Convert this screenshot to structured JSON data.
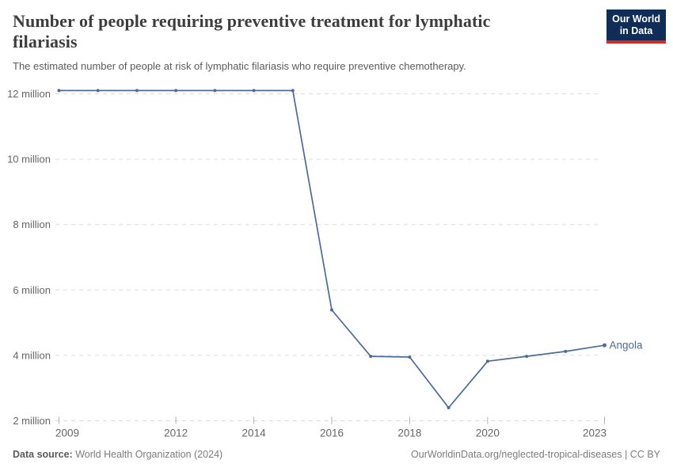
{
  "header": {
    "title_lines": [
      "Number of people requiring preventive treatment for lymphatic",
      "filariasis"
    ],
    "subtitle": "The estimated number of people at risk of lymphatic filariasis who require preventive chemotherapy."
  },
  "logo": {
    "line1": "Our World",
    "line2": "in Data",
    "background_color": "#0f2d56",
    "accent_color": "#cf2d27"
  },
  "footer": {
    "data_source_label": "Data source:",
    "data_source_value": " World Health Organization (2024)",
    "right_text": "OurWorldinData.org/neglected-tropical-diseases | CC BY"
  },
  "chart_data": {
    "type": "line",
    "title": "Number of people requiring preventive treatment for lymphatic filariasis",
    "subtitle": "The estimated number of people at risk of lymphatic filariasis who require preventive chemotherapy.",
    "x": [
      2009,
      2010,
      2011,
      2012,
      2013,
      2014,
      2015,
      2016,
      2017,
      2018,
      2019,
      2020,
      2021,
      2022,
      2023
    ],
    "series": [
      {
        "name": "Angola",
        "color": "#4C6A9C",
        "values": [
          12.1,
          12.1,
          12.1,
          12.1,
          12.1,
          12.1,
          12.1,
          5.39,
          3.97,
          3.95,
          2.4,
          3.82,
          3.97,
          4.12,
          4.31
        ]
      }
    ],
    "values_unit": "millions of people",
    "xlabel": "",
    "ylabel": "",
    "ylim": [
      2,
      12
    ],
    "yticks": [
      {
        "value": 2,
        "label": "2 million"
      },
      {
        "value": 4,
        "label": "4 million"
      },
      {
        "value": 6,
        "label": "6 million"
      },
      {
        "value": 8,
        "label": "8 million"
      },
      {
        "value": 10,
        "label": "10 million"
      },
      {
        "value": 12,
        "label": "12 million"
      }
    ],
    "xticks": [
      2009,
      2012,
      2014,
      2016,
      2018,
      2020,
      2023
    ],
    "grid": "horizontal-dashed",
    "gridline_color": "#dcdcdc",
    "tick_label_color": "#666666",
    "legend": "end-of-line-label"
  }
}
